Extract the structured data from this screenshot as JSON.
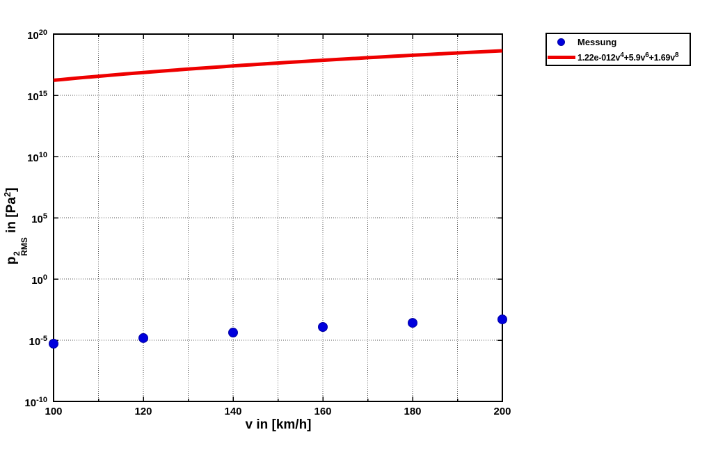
{
  "figure": {
    "background": "#ffffff"
  },
  "legend": {
    "entries": [
      {
        "marker": "dot",
        "label": "Messung",
        "color": "#0000dd"
      },
      {
        "marker": "line",
        "label": "1.22e-012v^4+5.9v^6+1.69v^8",
        "color": "#ee0000",
        "formula_parts": [
          "1.22e-012v",
          "4",
          "+5.9v",
          "6",
          "+1.69v",
          "8"
        ]
      }
    ]
  },
  "chart_data": {
    "type": "scatter",
    "title": "",
    "xlabel": "v in [km/h]",
    "ylabel": "p^2_RMS in [Pa^2]",
    "ylabel_parts": {
      "base": "p",
      "power": "2",
      "subscript": "RMS",
      "mid": " in [Pa",
      "unit_power": "2",
      "end": "]"
    },
    "x_scale": "linear",
    "y_scale": "log",
    "xlim": [
      100,
      200
    ],
    "ylim": [
      1e-10,
      1e+20
    ],
    "ylim_exponents": [
      -10,
      20
    ],
    "x_ticks": [
      100,
      120,
      140,
      160,
      180,
      200
    ],
    "x_minor_grid_step": 10,
    "y_tick_base": "10",
    "y_tick_exponents": [
      20,
      15,
      10,
      5,
      0,
      -5,
      -10
    ],
    "grid": "dotted",
    "grid_color": "#555555",
    "legend_position": "outside-top-right",
    "series": [
      {
        "name": "Messung",
        "type": "scatter",
        "color": "#0000dd",
        "edge_color": "#0000a0",
        "x": [
          100,
          120,
          140,
          160,
          180,
          200
        ],
        "y": [
          5.2e-06,
          1.5e-05,
          4.2e-05,
          0.00012,
          0.00026,
          0.0005
        ]
      },
      {
        "name": "1.22e-012v^4+5.9v^6+1.69v^8",
        "type": "line",
        "color": "#ee0000",
        "line_width": 5,
        "coefficients": {
          "c4": 1.22e-12,
          "c6": 5.9,
          "c8": 1.69
        }
      }
    ]
  }
}
